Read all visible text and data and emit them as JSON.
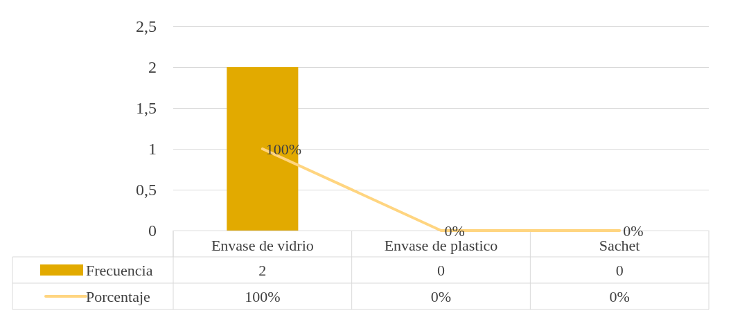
{
  "chart_data": {
    "type": "bar",
    "categories": [
      "Envase de vidrio",
      "Envase de plastico",
      "Sachet"
    ],
    "series": [
      {
        "name": "Frecuencia",
        "color": "#e2aa00",
        "values": [
          2,
          0,
          0
        ],
        "value_labels": [
          "2",
          "0",
          "0"
        ]
      },
      {
        "name": "Porcentaje",
        "type": "line",
        "color": "#ffd580",
        "values": [
          1,
          0,
          0
        ],
        "value_labels": [
          "100%",
          "0%",
          "0%"
        ]
      }
    ],
    "ylim": [
      0,
      2.5
    ],
    "yticks": [
      0,
      {
        "value": 0.5,
        "label": "0,5"
      },
      1,
      {
        "value": 1.5,
        "label": "1,5"
      },
      2,
      {
        "value": 2.5,
        "label": "2,5"
      }
    ],
    "grid": "y",
    "legend": "bottom",
    "marker": "none",
    "line_style": "solid"
  }
}
